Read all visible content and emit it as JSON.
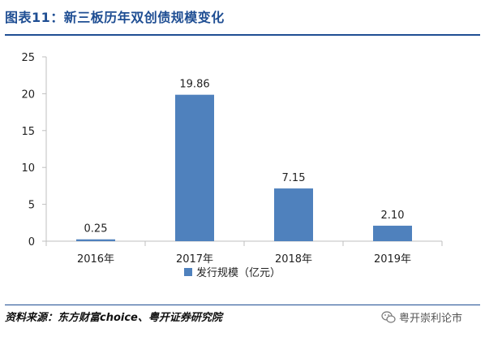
{
  "figure_title": "图表11：新三板历年双创债规模变化",
  "source_note": "资料来源：东方财富choice、粤开证券研究院",
  "watermark": {
    "icon": "wechat-icon",
    "text": "粤开崇利论市"
  },
  "colors": {
    "title": "#1f4e93",
    "bar": "#4f81bd",
    "axis": "#bfbfbf",
    "text": "#222222"
  },
  "chart_data": {
    "type": "bar",
    "title": "",
    "xlabel": "",
    "ylabel": "",
    "categories": [
      "2016年",
      "2017年",
      "2018年",
      "2019年"
    ],
    "series": [
      {
        "name": "发行规模（亿元）",
        "values": [
          0.25,
          19.86,
          7.15,
          2.1
        ],
        "labels": [
          "0.25",
          "19.86",
          "7.15",
          "2.10"
        ]
      }
    ],
    "ylim": [
      0,
      25
    ],
    "yticks": [
      0,
      5,
      10,
      15,
      20,
      25
    ],
    "grid": false,
    "legend_position": "bottom"
  }
}
